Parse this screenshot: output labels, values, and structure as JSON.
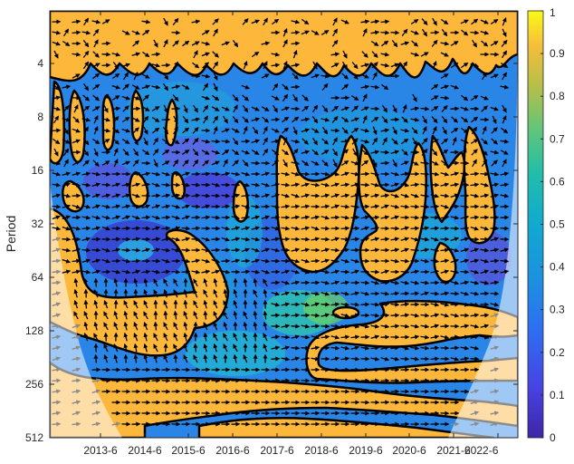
{
  "chart_data": {
    "type": "heatmap",
    "title": "",
    "xlabel": "",
    "ylabel": "Period",
    "x_tick_labels": [
      "2013-6",
      "2014-6",
      "2015-6",
      "2016-6",
      "2017-6",
      "2018-6",
      "2019-6",
      "2020-6",
      "2021-6",
      "2022-6"
    ],
    "y_tick_labels": [
      "4",
      "8",
      "16",
      "32",
      "64",
      "128",
      "256",
      "512"
    ],
    "y_scale": "log2",
    "ylim": [
      2,
      512
    ],
    "y_direction": "reversed",
    "colorbar": {
      "ticks": [
        "0",
        "0.1",
        "0.2",
        "0.3",
        "0.4",
        "0.5",
        "0.6",
        "0.7",
        "0.8",
        "0.9",
        "1"
      ],
      "range": [
        0,
        1
      ],
      "colormap": "parula"
    },
    "contour_level": 0.6,
    "arrows": "phase",
    "cone_of_influence": true,
    "colors": {
      "parula_low": "#3e26a8",
      "parula_mid": "#19b2d6",
      "parula_high": "#f9fb15",
      "significant_region": "#fdb73b",
      "coi_overlay": "#ffffff",
      "arrow": "#000000",
      "coi_arrow": "#8a8a8a"
    }
  }
}
